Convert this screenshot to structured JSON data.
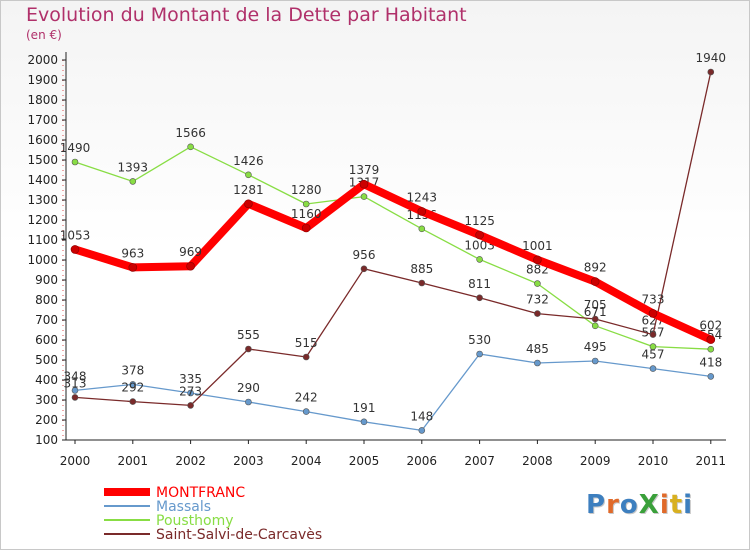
{
  "header": {
    "title": "Evolution du Montant de la Dette par Habitant",
    "subtitle": "(en €)"
  },
  "logo": {
    "text": "ProXiti",
    "colors": [
      "#3d7fbf",
      "#e06a2a",
      "#3d7fbf",
      "#3aa03a",
      "#e06a2a",
      "#d8b020",
      "#3d7fbf"
    ]
  },
  "chart_data": {
    "type": "line",
    "title": "Evolution du Montant de la Dette par Habitant",
    "subtitle": "(en €)",
    "xlabel": "",
    "ylabel": "",
    "x": [
      "2000",
      "2001",
      "2002",
      "2003",
      "2004",
      "2005",
      "2006",
      "2007",
      "2008",
      "2009",
      "2010",
      "2011"
    ],
    "ylim": [
      100,
      2000
    ],
    "yticks": [
      100,
      200,
      300,
      400,
      500,
      600,
      700,
      800,
      900,
      1000,
      1100,
      1200,
      1300,
      1400,
      1500,
      1600,
      1700,
      1800,
      1900,
      2000
    ],
    "grid": false,
    "legend_position": "bottom-left",
    "series": [
      {
        "name": "MONTFRANC",
        "color": "#ff0000",
        "values": [
          1053,
          963,
          969,
          1281,
          1160,
          1379,
          1243,
          1125,
          1001,
          892,
          733,
          602
        ]
      },
      {
        "name": "Massals",
        "color": "#6699cc",
        "values": [
          348,
          378,
          335,
          290,
          242,
          191,
          148,
          530,
          485,
          495,
          457,
          418
        ]
      },
      {
        "name": "Pousthomy",
        "color": "#88dd44",
        "values": [
          1490,
          1393,
          1566,
          1426,
          1280,
          1317,
          1156,
          1003,
          882,
          671,
          567,
          554
        ]
      },
      {
        "name": "Saint-Salvi-de-Carcavès",
        "color": "#7a2a2a",
        "values": [
          313,
          292,
          273,
          555,
          515,
          956,
          885,
          811,
          732,
          705,
          627,
          1940
        ]
      }
    ]
  }
}
